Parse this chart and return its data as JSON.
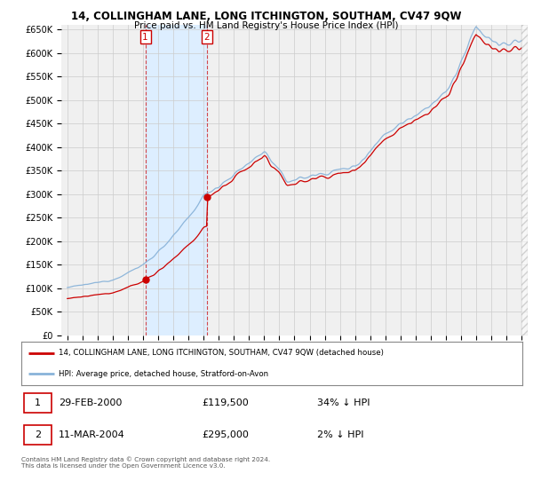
{
  "title": "14, COLLINGHAM LANE, LONG ITCHINGTON, SOUTHAM, CV47 9QW",
  "subtitle": "Price paid vs. HM Land Registry's House Price Index (HPI)",
  "legend_line1": "14, COLLINGHAM LANE, LONG ITCHINGTON, SOUTHAM, CV47 9QW (detached house)",
  "legend_line2": "HPI: Average price, detached house, Stratford-on-Avon",
  "transaction1_date": "29-FEB-2000",
  "transaction1_price": "£119,500",
  "transaction1_hpi": "34% ↓ HPI",
  "transaction2_date": "11-MAR-2004",
  "transaction2_price": "£295,000",
  "transaction2_hpi": "2% ↓ HPI",
  "footer": "Contains HM Land Registry data © Crown copyright and database right 2024.\nThis data is licensed under the Open Government Licence v3.0.",
  "red_color": "#cc0000",
  "blue_color": "#89b3d9",
  "shade_color": "#ddeeff",
  "grid_color": "#cccccc",
  "background_color": "#ffffff",
  "plot_bg_color": "#f0f0f0",
  "ylim": [
    0,
    660000
  ],
  "yticks": [
    0,
    50000,
    100000,
    150000,
    200000,
    250000,
    300000,
    350000,
    400000,
    450000,
    500000,
    550000,
    600000,
    650000
  ],
  "t1_year": 2000.15,
  "t2_year": 2004.21,
  "t1_price": 119500,
  "t2_price": 295000,
  "xmin": 1994.6,
  "xmax": 2025.4
}
